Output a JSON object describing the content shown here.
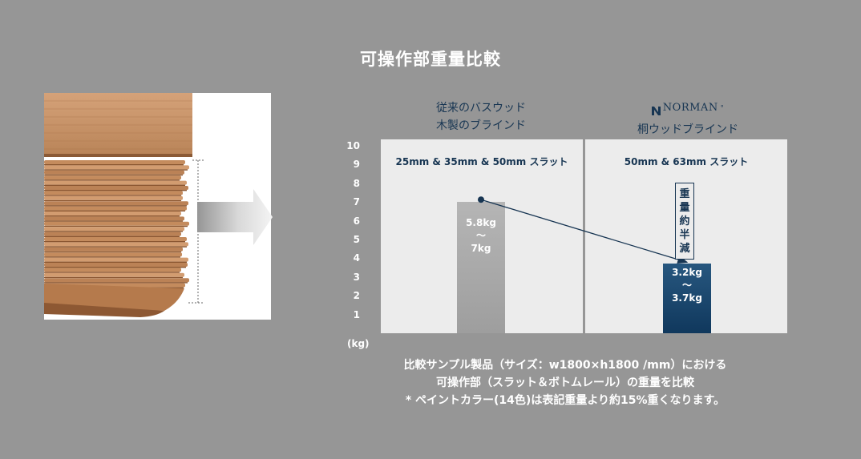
{
  "title": "可操作部重量比較",
  "columns": {
    "left": {
      "heading_line1": "従来のバスウッド",
      "heading_line2": "木製のブラインド",
      "panel_label": "25mm & 35mm & 50mm スラット"
    },
    "right": {
      "logo_text": "NORMAN",
      "logo_mark": "°",
      "heading_line2": "桐ウッドブラインド",
      "panel_label": "50mm & 63mm スラット"
    }
  },
  "badge": {
    "chars": [
      "重",
      "量",
      "約",
      "半",
      "減"
    ]
  },
  "notes": {
    "line1": "比較サンプル製品（サイズ：w1800×h1800 /mm）における",
    "line2": "可操作部（スラット＆ボトムレール）の重量を比較",
    "line3": "* ペイントカラー(14色)は表記重量より約15%重くなります。"
  },
  "chart_data": {
    "type": "bar",
    "y_unit": "(kg)",
    "yticks": [
      "1",
      "2",
      "3",
      "4",
      "5",
      "6",
      "7",
      "8",
      "9",
      "10"
    ],
    "ylim": [
      0,
      10
    ],
    "bars": [
      {
        "range": [
          5.8,
          7
        ],
        "label_top": "5.8kg",
        "label_sep": "〜",
        "label_bottom": "7kg"
      },
      {
        "range": [
          3.2,
          3.7
        ],
        "label_top": "3.2kg",
        "label_sep": "〜",
        "label_bottom": "3.7kg"
      }
    ],
    "colors": {
      "old": "#a8a8a8",
      "new": "#173f63",
      "line": "#173552"
    }
  }
}
